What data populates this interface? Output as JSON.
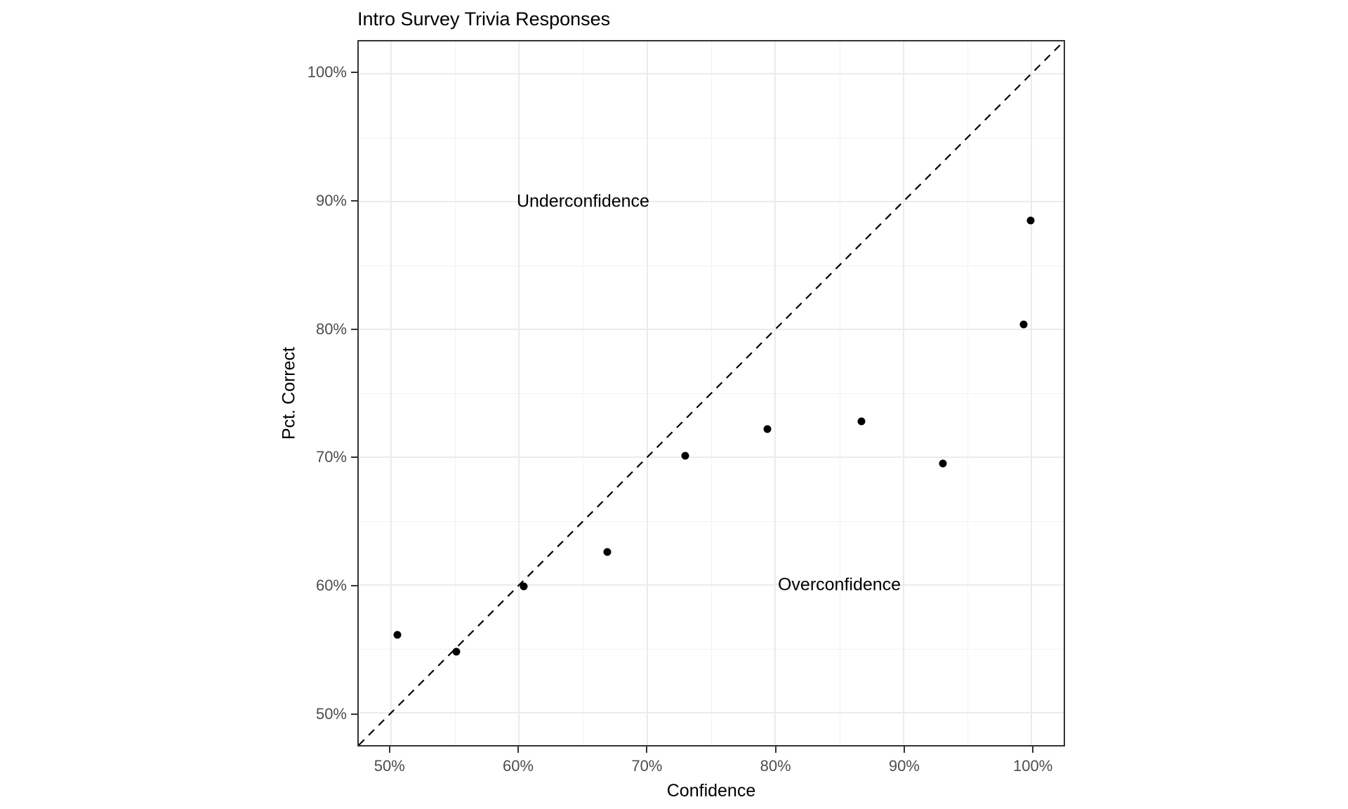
{
  "chart_data": {
    "type": "scatter",
    "title": "Intro Survey Trivia Responses",
    "xlabel": "Confidence",
    "ylabel": "Pct. Correct",
    "xlim": [
      47.5,
      102.5
    ],
    "ylim": [
      47.5,
      102.5
    ],
    "x_ticks": {
      "values": [
        50,
        60,
        70,
        80,
        90,
        100
      ],
      "labels": [
        "50%",
        "60%",
        "70%",
        "80%",
        "90%",
        "100%"
      ]
    },
    "y_ticks": {
      "values": [
        50,
        60,
        70,
        80,
        90,
        100
      ],
      "labels": [
        "50%",
        "60%",
        "70%",
        "80%",
        "90%",
        "100%"
      ]
    },
    "minor_gridlines": [
      55,
      65,
      75,
      85,
      95
    ],
    "grid": "major and minor gridlines, light gray on white, full panel border",
    "legend_position": "none",
    "points": [
      {
        "confidence": 50.5,
        "pct_correct": 56.1
      },
      {
        "confidence": 55.1,
        "pct_correct": 54.8
      },
      {
        "confidence": 60.4,
        "pct_correct": 59.9
      },
      {
        "confidence": 66.9,
        "pct_correct": 62.6
      },
      {
        "confidence": 73.0,
        "pct_correct": 70.1
      },
      {
        "confidence": 79.4,
        "pct_correct": 72.2
      },
      {
        "confidence": 86.7,
        "pct_correct": 72.8
      },
      {
        "confidence": 93.1,
        "pct_correct": 69.5
      },
      {
        "confidence": 99.4,
        "pct_correct": 80.4
      },
      {
        "confidence": 99.9,
        "pct_correct": 88.5
      }
    ],
    "reference_line": {
      "equation": "y = x",
      "style": "dashed",
      "from": [
        47.5,
        47.5
      ],
      "to": [
        102.5,
        102.5
      ]
    },
    "annotations": [
      {
        "text": "Underconfidence",
        "x": 65,
        "y": 90
      },
      {
        "text": "Overconfidence",
        "x": 85,
        "y": 60
      }
    ]
  },
  "colors": {
    "background": "#ffffff",
    "panel_background": "#ffffff",
    "panel_border": "#333333",
    "grid_major": "#ebebeb",
    "grid_minor": "#f2f2f2",
    "tick": "#333333",
    "tick_label": "#4d4d4d",
    "text": "#000000",
    "point": "#000000",
    "reference_line": "#000000"
  }
}
